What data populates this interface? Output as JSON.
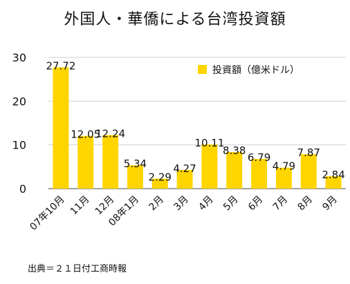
{
  "source": "出典＝２１日付工商時報",
  "colors": {
    "bar": "#FFD500",
    "grid": "#cfcfcf",
    "axis": "#444444"
  },
  "chart_data": {
    "type": "bar",
    "title": "外国人・華僑による台湾投資額",
    "categories": [
      "07年10月",
      "11月",
      "12月",
      "08年1月",
      "2月",
      "3月",
      "4月",
      "5月",
      "6月",
      "7月",
      "8月",
      "9月"
    ],
    "series": [
      {
        "name": "投資額（億米ドル）",
        "values": [
          27.72,
          12.05,
          12.24,
          5.34,
          2.29,
          4.27,
          10.11,
          8.38,
          6.79,
          4.79,
          7.87,
          2.84
        ],
        "labels": [
          "27.72",
          "12.05",
          "12.24",
          "5.34",
          "2.29",
          "4.27",
          "10.11",
          "8.38",
          "6.79",
          "4.79",
          "7.87",
          "2.84"
        ]
      }
    ],
    "yticks": [
      "0",
      "10",
      "20",
      "30"
    ],
    "ylim": [
      0,
      30
    ],
    "grid": true,
    "legend_position": "top-right"
  }
}
